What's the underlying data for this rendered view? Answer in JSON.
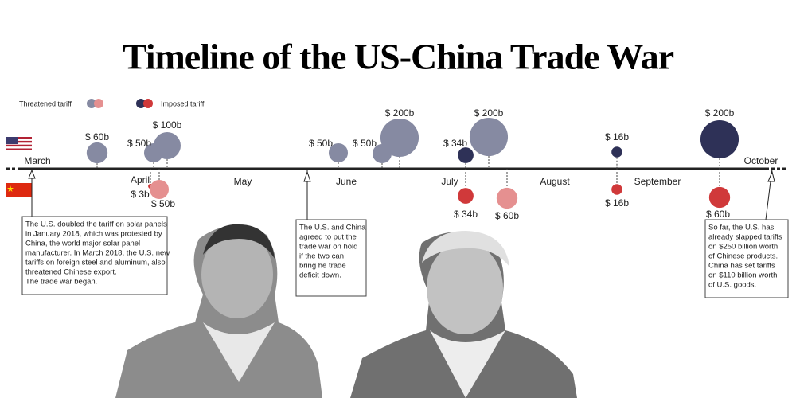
{
  "title": "Timeline of the US-China Trade War",
  "legend": {
    "threatened": "Threatened tariff",
    "imposed": "Imposed tariff"
  },
  "months": [
    "March",
    "April",
    "May",
    "June",
    "July",
    "August",
    "September",
    "October"
  ],
  "events": [
    {
      "label": "$ 60b",
      "value": 60,
      "color": "#868aa2"
    },
    {
      "label": "$ 50b",
      "value": 50,
      "color": "#868aa2"
    },
    {
      "label": "$ 100b",
      "value": 100,
      "color": "#868aa2"
    },
    {
      "label": "$ 50b",
      "value": 50,
      "color": "#868aa2"
    },
    {
      "label": "$ 50b",
      "value": 50,
      "color": "#868aa2"
    },
    {
      "label": "$ 200b",
      "value": 200,
      "color": "#868aa2"
    },
    {
      "label": "$ 34b",
      "value": 34,
      "color": "#2e3157"
    },
    {
      "label": "$ 200b",
      "value": 200,
      "color": "#868aa2"
    },
    {
      "label": "$ 16b",
      "value": 16,
      "color": "#2e3157"
    },
    {
      "label": "$ 200b",
      "value": 200,
      "color": "#2e3157"
    },
    {
      "label": "$ 3b",
      "value": 3,
      "color": "#d0393a"
    },
    {
      "label": "$ 50b",
      "value": 50,
      "color": "#e59090"
    },
    {
      "label": "$ 34b",
      "value": 34,
      "color": "#d0393a"
    },
    {
      "label": "$ 60b",
      "value": 60,
      "color": "#e59090"
    },
    {
      "label": "$ 16b",
      "value": 16,
      "color": "#d0393a"
    },
    {
      "label": "$ 60b",
      "value": 60,
      "color": "#d0393a"
    }
  ],
  "notes": [
    {
      "lines": [
        "The U.S. doubled the tariff on solar panels",
        "in January 2018, which was protested by",
        "China, the world major solar panel",
        "manufacturer. In March 2018, the U.S. new",
        "tariffs on foreign steel and aluminum, also",
        "threatened Chinese export.",
        "The trade war began."
      ]
    },
    {
      "lines": [
        "The U.S. and China",
        "agreed to put the",
        "trade war on hold",
        "if the two can",
        "bring he trade",
        "deficit down."
      ]
    },
    {
      "lines": [
        "So far, the U.S. has",
        "already slapped tariffs",
        "on $250 billion worth",
        "of Chinese products.",
        "China has set tariffs",
        "on $110 billion worth",
        "of U.S. goods."
      ]
    }
  ]
}
